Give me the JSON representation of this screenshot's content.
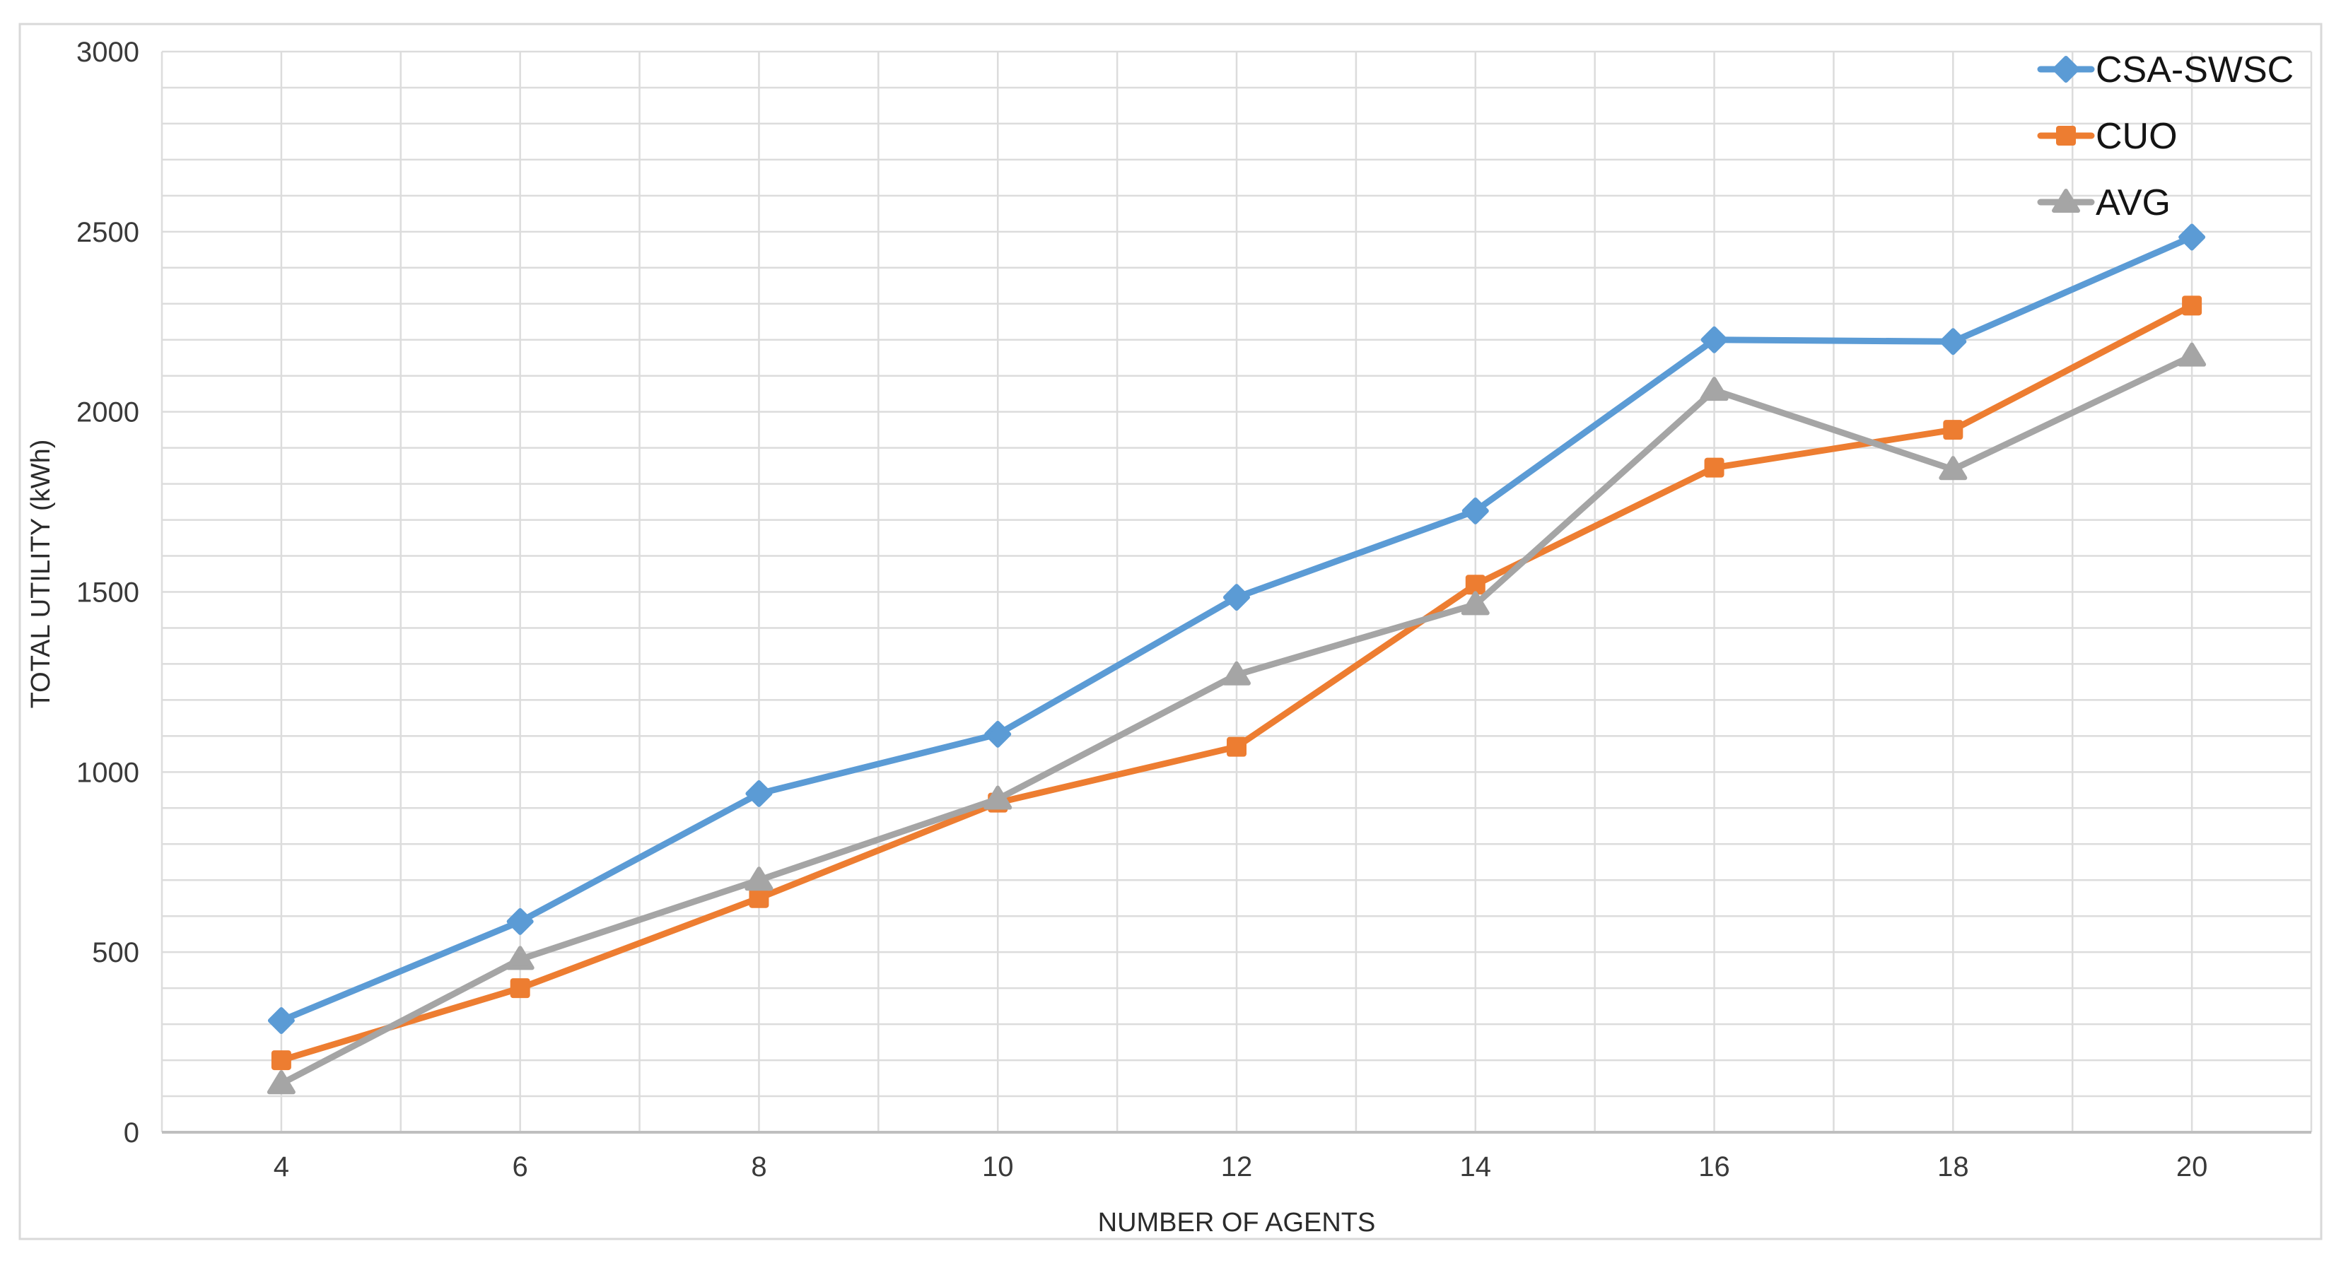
{
  "figure": {
    "background": "#ffffff",
    "border_color": "#d9d9d9"
  },
  "chart_data": {
    "type": "line",
    "title": "",
    "xlabel": "NUMBER OF AGENTS",
    "ylabel": "TOTAL UTILITY (kWh)",
    "categories": [
      4,
      6,
      8,
      10,
      12,
      14,
      16,
      18,
      20
    ],
    "x_tick_labels": [
      "4",
      "6",
      "8",
      "10",
      "12",
      "14",
      "16",
      "18",
      "20"
    ],
    "y_ticks": [
      0,
      500,
      1000,
      1500,
      2000,
      2500,
      3000
    ],
    "ylim": [
      0,
      3000
    ],
    "y_minor_step": 100,
    "grid": true,
    "legend_position": "top-right",
    "series": [
      {
        "name": "CSA-SWSC",
        "color": "#5B9BD5",
        "marker": "diamond",
        "values": [
          310,
          585,
          940,
          1105,
          1485,
          1725,
          2200,
          2195,
          2485
        ]
      },
      {
        "name": "CUO",
        "color": "#ED7D31",
        "marker": "square",
        "values": [
          200,
          400,
          650,
          915,
          1070,
          1520,
          1845,
          1950,
          2295
        ]
      },
      {
        "name": "AVG",
        "color": "#A5A5A5",
        "marker": "triangle",
        "values": [
          135,
          480,
          700,
          925,
          1270,
          1465,
          2060,
          1840,
          2155
        ]
      }
    ],
    "colors": {
      "gridline": "#dcdcdc",
      "axis_line": "#bfbfbf",
      "tick_text": "#3a3a3a",
      "legend_text": "#141414"
    }
  }
}
